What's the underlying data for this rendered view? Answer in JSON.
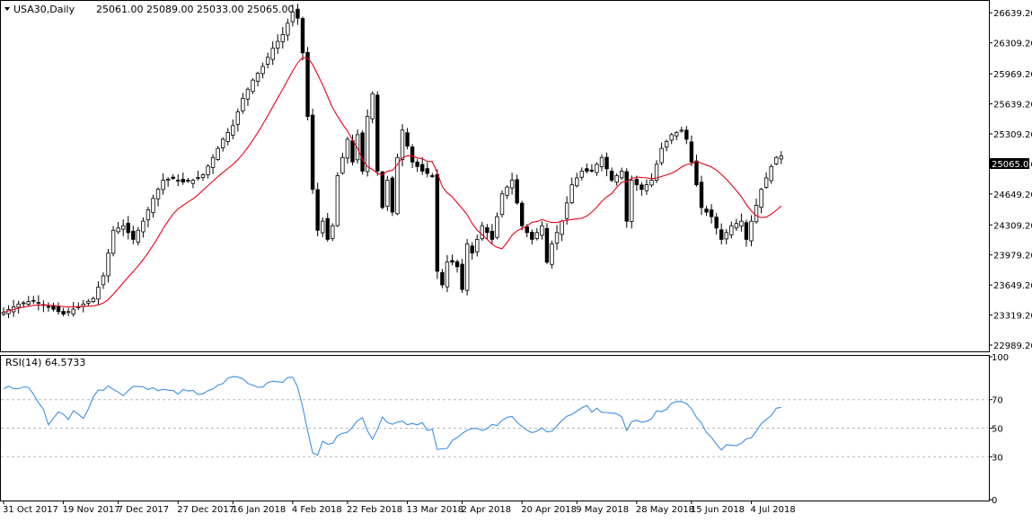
{
  "header": {
    "symbol_timeframe": "USA30,Daily",
    "ohlc": "25061.00 25089.00 25033.00 25065.00"
  },
  "rsi_header": {
    "label": "RSI(14) 64.5733"
  },
  "price_axis": {
    "ticks": [
      "26639.20",
      "26309.20",
      "25969.20",
      "25639.20",
      "25309.20",
      "24979.20",
      "24649.20",
      "24309.20",
      "23979.20",
      "23649.20",
      "23319.20",
      "22989.20"
    ],
    "current_label": "25065.00"
  },
  "rsi_axis": {
    "ticks": [
      "100",
      "70",
      "50",
      "30",
      "0"
    ]
  },
  "x_axis": {
    "ticks": [
      "31 Oct 2017",
      "19 Nov 2017",
      "7 Dec 2017",
      "27 Dec 2017",
      "16 Jan 2018",
      "4 Feb 2018",
      "22 Feb 2018",
      "13 Mar 2018",
      "2 Apr 2018",
      "20 Apr 2018",
      "9 May 2018",
      "28 May 2018",
      "15 Jun 2018",
      "4 Jul 2018"
    ]
  },
  "colors": {
    "bull": "#ffffff",
    "bear": "#000000",
    "ma_line": "#e8001c",
    "rsi_line": "#3d8fe0",
    "grid_dash": "#b8b8b8",
    "frame": "#000000"
  },
  "chart_data": [
    {
      "type": "candlestick",
      "title": "USA30,Daily",
      "ylim": [
        22930,
        26760
      ],
      "current_value": 25065,
      "anchor_closes": [
        [
          0,
          23350
        ],
        [
          3,
          23440
        ],
        [
          6,
          23480
        ],
        [
          9,
          23410
        ],
        [
          12,
          23330
        ],
        [
          15,
          23410
        ],
        [
          18,
          23500
        ],
        [
          20,
          23750
        ],
        [
          22,
          24250
        ],
        [
          24,
          24300
        ],
        [
          26,
          24150
        ],
        [
          28,
          24350
        ],
        [
          30,
          24600
        ],
        [
          32,
          24800
        ],
        [
          34,
          24820
        ],
        [
          36,
          24780
        ],
        [
          38,
          24800
        ],
        [
          40,
          24860
        ],
        [
          42,
          25050
        ],
        [
          44,
          25250
        ],
        [
          46,
          25400
        ],
        [
          48,
          25700
        ],
        [
          50,
          25900
        ],
        [
          52,
          26050
        ],
        [
          54,
          26250
        ],
        [
          56,
          26400
        ],
        [
          58,
          26650
        ],
        [
          59,
          26580
        ],
        [
          60,
          26200
        ],
        [
          61,
          25500
        ],
        [
          62,
          24700
        ],
        [
          63,
          24250
        ],
        [
          64,
          24350
        ],
        [
          65,
          24150
        ],
        [
          66,
          24300
        ],
        [
          67,
          24850
        ],
        [
          68,
          25050
        ],
        [
          69,
          25250
        ],
        [
          70,
          25000
        ],
        [
          71,
          25300
        ],
        [
          72,
          24900
        ],
        [
          73,
          25500
        ],
        [
          74,
          25750
        ],
        [
          75,
          24900
        ],
        [
          76,
          24500
        ],
        [
          77,
          24800
        ],
        [
          78,
          24450
        ],
        [
          79,
          25050
        ],
        [
          80,
          25350
        ],
        [
          82,
          25000
        ],
        [
          84,
          24900
        ],
        [
          86,
          24850
        ],
        [
          87,
          23800
        ],
        [
          88,
          23650
        ],
        [
          89,
          23900
        ],
        [
          90,
          23900
        ],
        [
          91,
          23850
        ],
        [
          92,
          23600
        ],
        [
          93,
          24100
        ],
        [
          94,
          24000
        ],
        [
          96,
          24300
        ],
        [
          98,
          24150
        ],
        [
          100,
          24650
        ],
        [
          102,
          24800
        ],
        [
          104,
          24300
        ],
        [
          106,
          24150
        ],
        [
          108,
          24300
        ],
        [
          109,
          23900
        ],
        [
          110,
          24100
        ],
        [
          112,
          24350
        ],
        [
          114,
          24750
        ],
        [
          116,
          24900
        ],
        [
          118,
          24900
        ],
        [
          120,
          25050
        ],
        [
          122,
          24800
        ],
        [
          124,
          24900
        ],
        [
          125,
          24350
        ],
        [
          126,
          24800
        ],
        [
          128,
          24700
        ],
        [
          130,
          24800
        ],
        [
          132,
          25150
        ],
        [
          134,
          25300
        ],
        [
          136,
          25350
        ],
        [
          137,
          25250
        ],
        [
          138,
          25000
        ],
        [
          140,
          24500
        ],
        [
          142,
          24400
        ],
        [
          144,
          24150
        ],
        [
          146,
          24300
        ],
        [
          148,
          24350
        ],
        [
          149,
          24150
        ],
        [
          150,
          24350
        ],
        [
          152,
          24700
        ],
        [
          154,
          24950
        ],
        [
          155,
          25050
        ],
        [
          156,
          25065
        ]
      ],
      "ma_overlay": {
        "name": "",
        "color": "red"
      }
    },
    {
      "type": "line",
      "title": "RSI(14) 64.5733",
      "ylim": [
        0,
        100
      ],
      "levels": [
        70,
        50,
        30
      ],
      "last_value": 64.5733,
      "anchors": [
        [
          0,
          77
        ],
        [
          4,
          80
        ],
        [
          6,
          75
        ],
        [
          8,
          62
        ],
        [
          9,
          53
        ],
        [
          11,
          60
        ],
        [
          13,
          56
        ],
        [
          14,
          63
        ],
        [
          16,
          57
        ],
        [
          17,
          63
        ],
        [
          18,
          73
        ],
        [
          20,
          78
        ],
        [
          22,
          79
        ],
        [
          24,
          73
        ],
        [
          26,
          79
        ],
        [
          28,
          78
        ],
        [
          30,
          77
        ],
        [
          32,
          79
        ],
        [
          34,
          75
        ],
        [
          36,
          76
        ],
        [
          38,
          75
        ],
        [
          40,
          73
        ],
        [
          42,
          77
        ],
        [
          44,
          82
        ],
        [
          46,
          85
        ],
        [
          48,
          84
        ],
        [
          50,
          79
        ],
        [
          52,
          80
        ],
        [
          54,
          84
        ],
        [
          56,
          82
        ],
        [
          58,
          86
        ],
        [
          59,
          80
        ],
        [
          60,
          64
        ],
        [
          61,
          47
        ],
        [
          62,
          31
        ],
        [
          63,
          33
        ],
        [
          64,
          40
        ],
        [
          66,
          40
        ],
        [
          68,
          47
        ],
        [
          70,
          51
        ],
        [
          72,
          57
        ],
        [
          73,
          50
        ],
        [
          74,
          44
        ],
        [
          76,
          56
        ],
        [
          78,
          52
        ],
        [
          80,
          55
        ],
        [
          82,
          53
        ],
        [
          84,
          52
        ],
        [
          86,
          48
        ],
        [
          87,
          34
        ],
        [
          88,
          35
        ],
        [
          90,
          40
        ],
        [
          92,
          46
        ],
        [
          94,
          50
        ],
        [
          96,
          48
        ],
        [
          98,
          51
        ],
        [
          100,
          56
        ],
        [
          102,
          58
        ],
        [
          104,
          52
        ],
        [
          106,
          46
        ],
        [
          108,
          52
        ],
        [
          110,
          46
        ],
        [
          112,
          54
        ],
        [
          114,
          60
        ],
        [
          116,
          65
        ],
        [
          118,
          63
        ],
        [
          120,
          63
        ],
        [
          122,
          60
        ],
        [
          124,
          57
        ],
        [
          125,
          49
        ],
        [
          126,
          56
        ],
        [
          128,
          55
        ],
        [
          130,
          58
        ],
        [
          132,
          63
        ],
        [
          134,
          67
        ],
        [
          136,
          68
        ],
        [
          138,
          64
        ],
        [
          140,
          52
        ],
        [
          142,
          43
        ],
        [
          144,
          36
        ],
        [
          146,
          38
        ],
        [
          148,
          40
        ],
        [
          150,
          42
        ],
        [
          152,
          52
        ],
        [
          154,
          60
        ],
        [
          155,
          63
        ],
        [
          156,
          64.57
        ]
      ]
    }
  ]
}
